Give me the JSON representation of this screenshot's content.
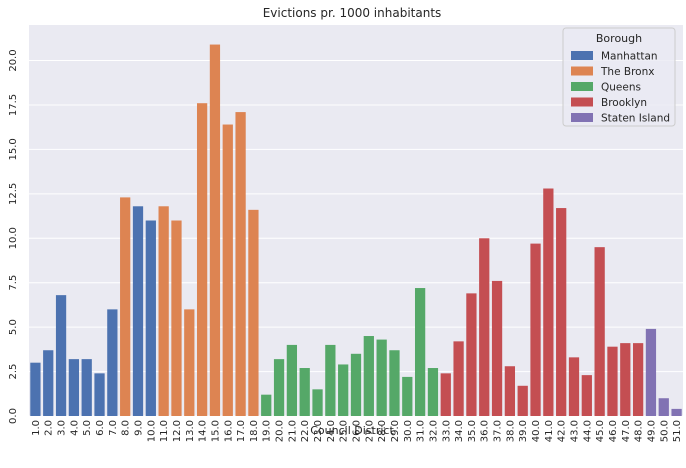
{
  "chart_data": {
    "type": "bar",
    "title": "Evictions pr. 1000 inhabitants",
    "xlabel": "Council District",
    "ylabel": "",
    "ylim": [
      0,
      22
    ],
    "yticks": [
      "0.0",
      "2.5",
      "5.0",
      "7.5",
      "10.0",
      "12.5",
      "15.0",
      "17.5",
      "20.0"
    ],
    "ytick_values": [
      0,
      2.5,
      5,
      7.5,
      10,
      12.5,
      15,
      17.5,
      20
    ],
    "grid": true,
    "legend": {
      "title": "Borough",
      "placement": "top-right",
      "entries": [
        {
          "name": "Manhattan",
          "color": "#4c72b0"
        },
        {
          "name": "The Bronx",
          "color": "#dd8452"
        },
        {
          "name": "Queens",
          "color": "#55a868"
        },
        {
          "name": "Brooklyn",
          "color": "#c44e52"
        },
        {
          "name": "Staten Island",
          "color": "#8172b3"
        }
      ]
    },
    "categories": [
      "1.0",
      "2.0",
      "3.0",
      "4.0",
      "5.0",
      "6.0",
      "7.0",
      "8.0",
      "9.0",
      "10.0",
      "11.0",
      "12.0",
      "13.0",
      "14.0",
      "15.0",
      "16.0",
      "17.0",
      "18.0",
      "19.0",
      "20.0",
      "21.0",
      "22.0",
      "23.0",
      "24.0",
      "25.0",
      "26.0",
      "27.0",
      "28.0",
      "29.0",
      "30.0",
      "31.0",
      "32.0",
      "33.0",
      "34.0",
      "35.0",
      "36.0",
      "37.0",
      "38.0",
      "39.0",
      "40.0",
      "41.0",
      "42.0",
      "43.0",
      "44.0",
      "45.0",
      "46.0",
      "47.0",
      "48.0",
      "49.0",
      "50.0",
      "51.0"
    ],
    "values": [
      3.0,
      3.7,
      6.8,
      3.2,
      3.2,
      2.4,
      6.0,
      12.3,
      11.8,
      11.0,
      11.8,
      11.0,
      6.0,
      17.6,
      20.9,
      16.4,
      17.1,
      11.6,
      1.2,
      3.2,
      4.0,
      2.7,
      1.5,
      4.0,
      2.9,
      3.5,
      4.5,
      4.3,
      3.7,
      2.2,
      7.2,
      2.7,
      2.4,
      4.2,
      6.9,
      10.0,
      7.6,
      2.8,
      1.7,
      9.7,
      12.8,
      11.7,
      3.3,
      2.3,
      9.5,
      3.9,
      4.1,
      4.1,
      4.9,
      1.0,
      0.4
    ],
    "borough": [
      "Manhattan",
      "Manhattan",
      "Manhattan",
      "Manhattan",
      "Manhattan",
      "Manhattan",
      "Manhattan",
      "The Bronx",
      "Manhattan",
      "Manhattan",
      "The Bronx",
      "The Bronx",
      "The Bronx",
      "The Bronx",
      "The Bronx",
      "The Bronx",
      "The Bronx",
      "The Bronx",
      "Queens",
      "Queens",
      "Queens",
      "Queens",
      "Queens",
      "Queens",
      "Queens",
      "Queens",
      "Queens",
      "Queens",
      "Queens",
      "Queens",
      "Queens",
      "Queens",
      "Brooklyn",
      "Brooklyn",
      "Brooklyn",
      "Brooklyn",
      "Brooklyn",
      "Brooklyn",
      "Brooklyn",
      "Brooklyn",
      "Brooklyn",
      "Brooklyn",
      "Brooklyn",
      "Brooklyn",
      "Brooklyn",
      "Brooklyn",
      "Brooklyn",
      "Brooklyn",
      "Staten Island",
      "Staten Island",
      "Staten Island"
    ]
  }
}
